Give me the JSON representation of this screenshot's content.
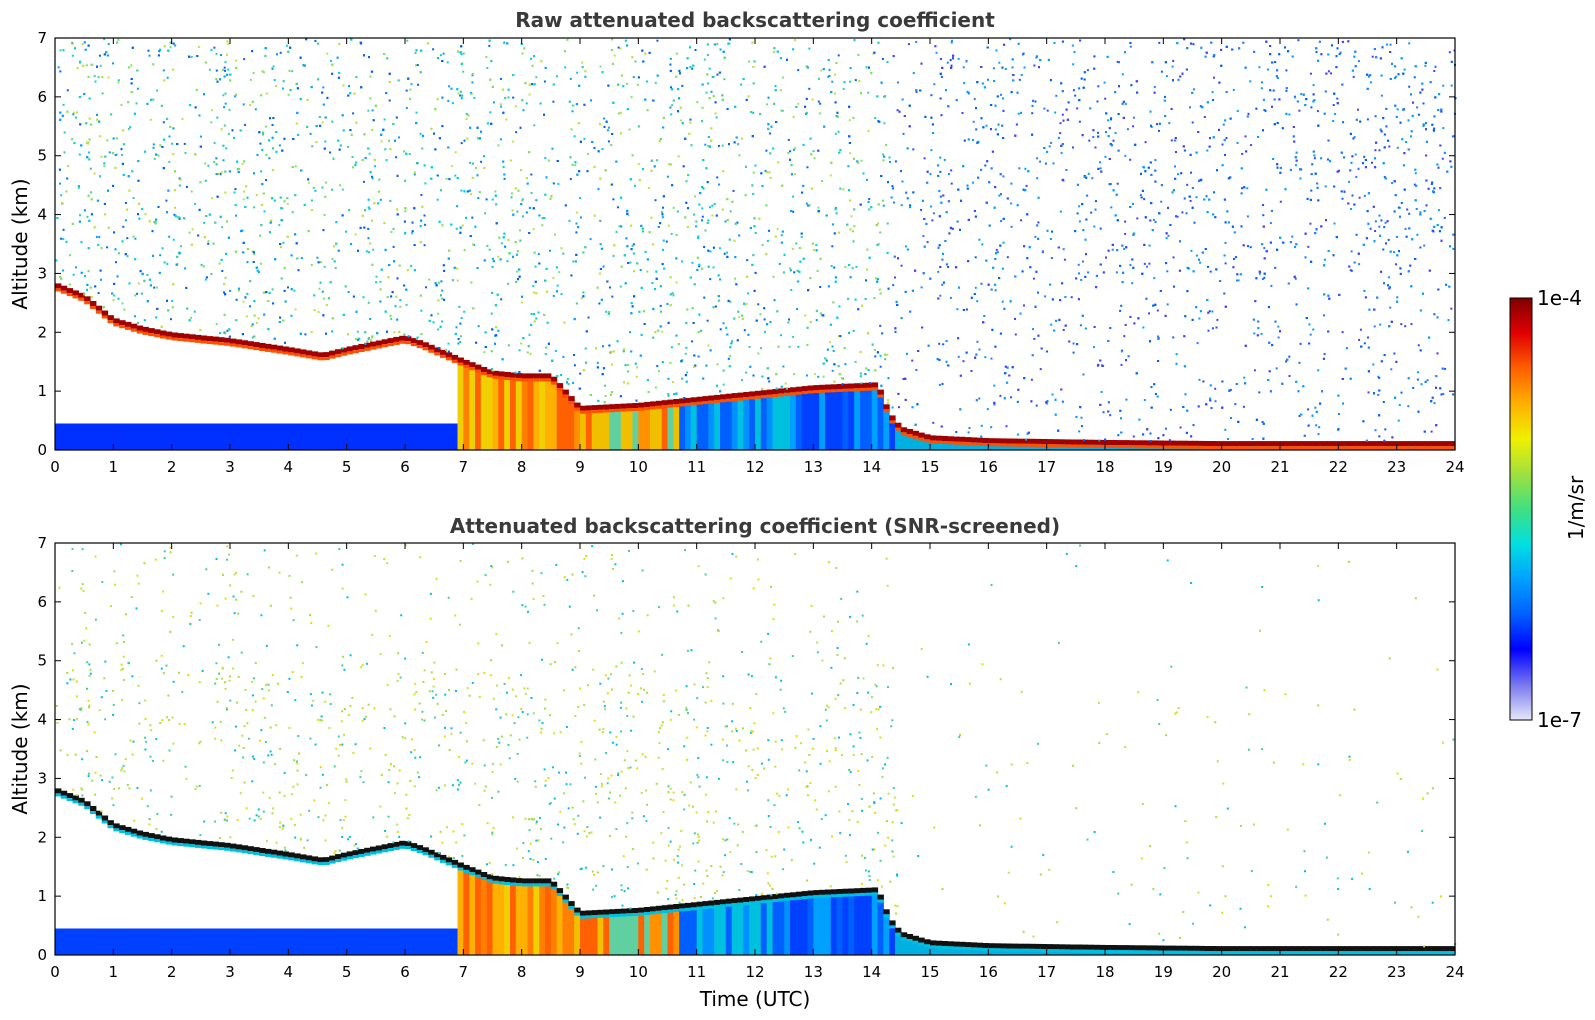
{
  "chart_data": [
    {
      "type": "heatmap",
      "title": "Raw attenuated backscattering coefficient",
      "ylabel": "Altitude (km)",
      "xlabel": "",
      "xlim": [
        0,
        24
      ],
      "ylim": [
        0,
        7
      ],
      "xticks": [
        "0",
        "1",
        "2",
        "3",
        "4",
        "5",
        "6",
        "7",
        "8",
        "9",
        "10",
        "11",
        "12",
        "13",
        "14",
        "15",
        "16",
        "17",
        "18",
        "19",
        "20",
        "21",
        "22",
        "23",
        "24"
      ],
      "yticks": [
        "0",
        "1",
        "2",
        "3",
        "4",
        "5",
        "6",
        "7"
      ],
      "grid": false,
      "layer_top_km": {
        "time_utc": [
          0,
          0.5,
          1,
          1.5,
          2,
          3,
          4,
          4.6,
          5,
          5.5,
          6,
          6.3,
          7,
          7.5,
          8,
          8.5,
          9,
          10,
          11,
          12,
          13,
          14.1,
          14.3,
          14.5,
          15,
          16,
          18,
          20,
          22,
          24
        ],
        "altitude_km": [
          2.8,
          2.6,
          2.2,
          2.05,
          1.95,
          1.85,
          1.7,
          1.6,
          1.7,
          1.8,
          1.9,
          1.8,
          1.5,
          1.3,
          1.25,
          1.25,
          0.7,
          0.75,
          0.85,
          0.95,
          1.05,
          1.1,
          0.6,
          0.35,
          0.2,
          0.15,
          0.12,
          0.1,
          0.1,
          0.1
        ]
      }
    },
    {
      "type": "heatmap",
      "title": "Attenuated backscattering coefficient (SNR-screened)",
      "ylabel": "Altitude (km)",
      "xlabel": "Time (UTC)",
      "xlim": [
        0,
        24
      ],
      "ylim": [
        0,
        7
      ],
      "xticks": [
        "0",
        "1",
        "2",
        "3",
        "4",
        "5",
        "6",
        "7",
        "8",
        "9",
        "10",
        "11",
        "12",
        "13",
        "14",
        "15",
        "16",
        "17",
        "18",
        "19",
        "20",
        "21",
        "22",
        "23",
        "24"
      ],
      "yticks": [
        "0",
        "1",
        "2",
        "3",
        "4",
        "5",
        "6",
        "7"
      ],
      "grid": false,
      "layer_top_km": {
        "time_utc": [
          0,
          0.5,
          1,
          1.5,
          2,
          3,
          4,
          4.6,
          5,
          5.5,
          6,
          6.3,
          7,
          7.5,
          8,
          8.5,
          9,
          10,
          11,
          12,
          13,
          14.1,
          14.3,
          14.5,
          15,
          16,
          18,
          20,
          22,
          24
        ],
        "altitude_km": [
          2.8,
          2.6,
          2.2,
          2.05,
          1.95,
          1.85,
          1.7,
          1.6,
          1.7,
          1.8,
          1.9,
          1.8,
          1.5,
          1.3,
          1.25,
          1.25,
          0.7,
          0.75,
          0.85,
          0.95,
          1.05,
          1.1,
          0.6,
          0.35,
          0.2,
          0.15,
          0.12,
          0.1,
          0.1,
          0.1
        ]
      }
    }
  ],
  "colorbar": {
    "max_label": "1e-4",
    "min_label": "1e-7",
    "unit": "1/m/sr",
    "colors": [
      "#e8e8f8",
      "#7878f0",
      "#0000ff",
      "#0060ff",
      "#00a0ff",
      "#00e0e0",
      "#40e080",
      "#a0e040",
      "#f0f000",
      "#ffb000",
      "#ff6000",
      "#e00000",
      "#800000"
    ]
  }
}
